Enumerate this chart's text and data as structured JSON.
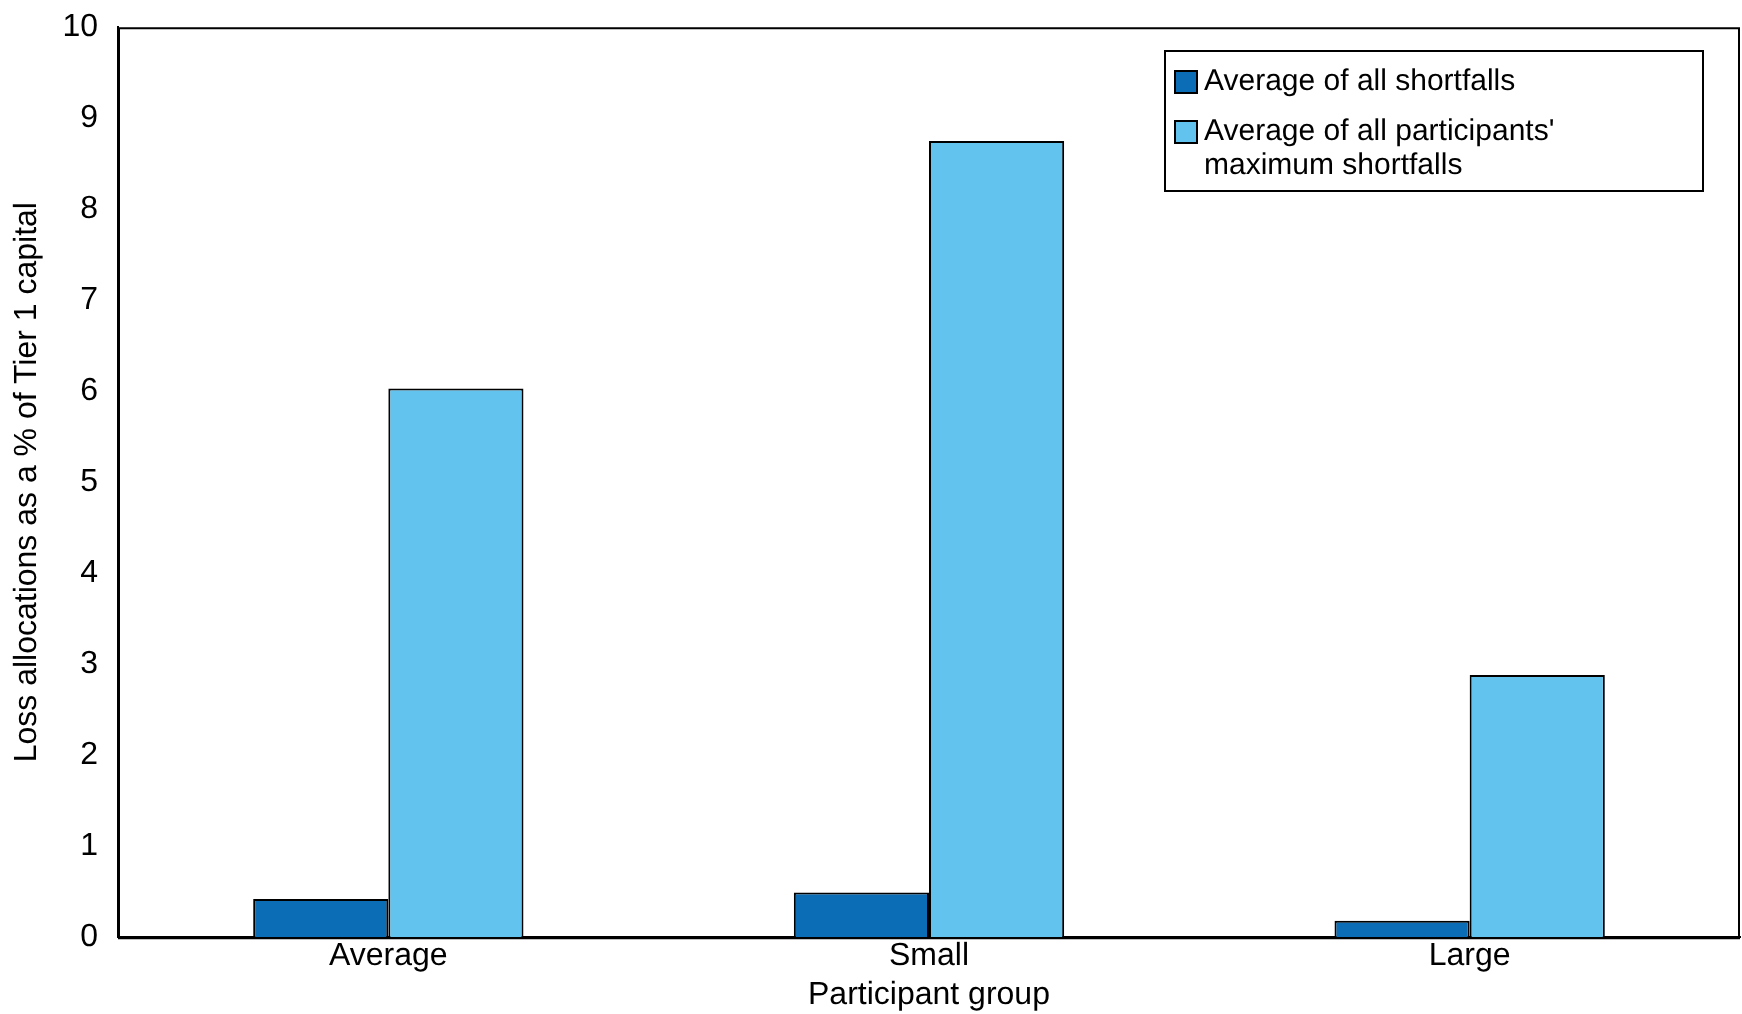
{
  "chart_data": {
    "type": "bar",
    "xlabel": "Participant group",
    "ylabel": "Loss allocations as a % of Tier 1 capital",
    "categories": [
      "Average",
      "Small",
      "Large"
    ],
    "series": [
      {
        "name": "Average of all shortfalls",
        "color": "#0a6db5",
        "values": [
          0.42,
          0.49,
          0.18
        ]
      },
      {
        "name": "Average of all participants' maximum shortfalls",
        "color": "#62c4ee",
        "values": [
          6.03,
          8.75,
          2.88
        ]
      }
    ],
    "ylim": [
      0,
      10
    ],
    "yticks": [
      0,
      1,
      2,
      3,
      4,
      5,
      6,
      7,
      8,
      9,
      10
    ],
    "grid": false,
    "legend": "top right"
  }
}
